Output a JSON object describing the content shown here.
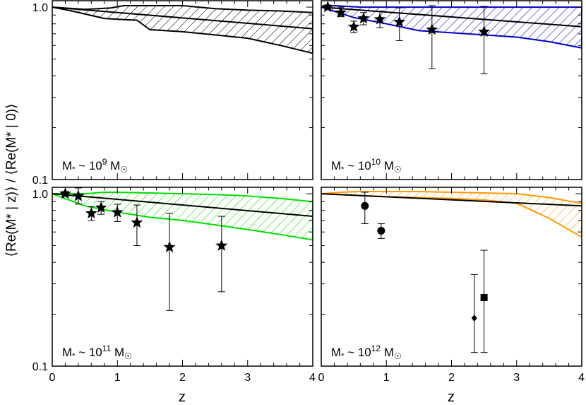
{
  "figure": {
    "ylabel": "⟨Re(M* | z)⟩ / ⟨Re(M* | 0)⟩",
    "xlabel": "z"
  },
  "chart_data": [
    {
      "type": "line",
      "panel": "top-left",
      "label": "M* ~ 10^9 M☉",
      "mass_exp": "9",
      "color": "#000000",
      "xlim": [
        0,
        4
      ],
      "ylim": [
        0.1,
        1.1
      ],
      "yscale": "log",
      "yticks": [
        "1.0",
        "0.1"
      ],
      "xticks": [],
      "model": {
        "x": [
          0,
          4
        ],
        "y": [
          1.0,
          0.75
        ]
      },
      "band_upper": {
        "x": [
          0,
          0.5,
          0.9,
          1.1,
          1.3,
          2,
          2.5,
          3,
          3.5,
          4
        ],
        "y": [
          1.0,
          0.97,
          0.99,
          1.02,
          1.02,
          1.02,
          0.98,
          0.96,
          0.95,
          0.93
        ]
      },
      "band_lower": {
        "x": [
          0,
          0.3,
          0.8,
          1.0,
          1.3,
          1.5,
          2,
          2.5,
          3,
          3.5,
          4
        ],
        "y": [
          1.0,
          0.95,
          0.86,
          0.85,
          0.84,
          0.74,
          0.72,
          0.69,
          0.66,
          0.6,
          0.54
        ]
      },
      "points": []
    },
    {
      "type": "line",
      "panel": "top-right",
      "label": "M* ~ 10^10 M☉",
      "mass_exp": "10",
      "color": "#0000cc",
      "xlim": [
        0,
        4
      ],
      "ylim": [
        0.1,
        1.1
      ],
      "yscale": "log",
      "yticks": [],
      "xticks": [],
      "model": {
        "x": [
          0,
          4
        ],
        "y": [
          1.0,
          0.77
        ]
      },
      "band_upper": {
        "x": [
          0,
          0.2,
          0.6,
          1,
          1.5,
          2,
          3,
          4
        ],
        "y": [
          1.0,
          1.02,
          1.0,
          1.0,
          1.0,
          1.0,
          1.0,
          1.0
        ]
      },
      "band_lower": {
        "x": [
          0,
          0.5,
          1,
          1.5,
          2,
          2.5,
          3,
          3.5,
          4
        ],
        "y": [
          1.0,
          0.87,
          0.8,
          0.73,
          0.71,
          0.69,
          0.67,
          0.63,
          0.58
        ]
      },
      "points": [
        {
          "x": 0.1,
          "y": 1.0,
          "lo": 0.97,
          "hi": 1.03,
          "marker": "star"
        },
        {
          "x": 0.3,
          "y": 0.93,
          "lo": 0.88,
          "hi": 1.0,
          "marker": "star"
        },
        {
          "x": 0.5,
          "y": 0.77,
          "lo": 0.71,
          "hi": 0.83,
          "marker": "star"
        },
        {
          "x": 0.65,
          "y": 0.86,
          "lo": 0.79,
          "hi": 0.93,
          "marker": "star"
        },
        {
          "x": 0.9,
          "y": 0.85,
          "lo": 0.76,
          "hi": 0.95,
          "marker": "star"
        },
        {
          "x": 1.2,
          "y": 0.82,
          "lo": 0.64,
          "hi": 0.99,
          "marker": "star"
        },
        {
          "x": 1.7,
          "y": 0.74,
          "lo": 0.44,
          "hi": 1.02,
          "marker": "star"
        },
        {
          "x": 2.5,
          "y": 0.72,
          "lo": 0.41,
          "hi": 1.01,
          "marker": "star"
        }
      ]
    },
    {
      "type": "line",
      "panel": "bottom-left",
      "label": "M* ~ 10^11 M☉",
      "mass_exp": "11",
      "color": "#00e000",
      "xlim": [
        0,
        4
      ],
      "ylim": [
        0.1,
        1.1
      ],
      "yscale": "log",
      "yticks": [
        "1.0",
        "0.1"
      ],
      "xticks": [
        "0",
        "1",
        "2",
        "3",
        "4"
      ],
      "model": {
        "x": [
          0,
          4
        ],
        "y": [
          1.0,
          0.74
        ]
      },
      "band_upper": {
        "x": [
          0,
          0.5,
          0.8,
          1,
          1.5,
          2,
          2.5,
          3,
          3.5,
          4
        ],
        "y": [
          1.0,
          1.0,
          1.02,
          1.02,
          1.01,
          1.0,
          0.99,
          0.97,
          0.94,
          0.9
        ]
      },
      "band_lower": {
        "x": [
          0,
          0.5,
          1,
          1.5,
          2,
          2.5,
          3,
          3.5,
          4
        ],
        "y": [
          1.0,
          0.85,
          0.78,
          0.73,
          0.7,
          0.66,
          0.62,
          0.58,
          0.54
        ]
      },
      "points": [
        {
          "x": 0.2,
          "y": 1.0,
          "lo": 0.97,
          "hi": 1.03,
          "marker": "star"
        },
        {
          "x": 0.4,
          "y": 0.97,
          "lo": 0.87,
          "hi": 1.08,
          "marker": "star"
        },
        {
          "x": 0.6,
          "y": 0.77,
          "lo": 0.7,
          "hi": 0.84,
          "marker": "star"
        },
        {
          "x": 0.75,
          "y": 0.83,
          "lo": 0.76,
          "hi": 0.9,
          "marker": "star"
        },
        {
          "x": 1.0,
          "y": 0.78,
          "lo": 0.69,
          "hi": 0.87,
          "marker": "star"
        },
        {
          "x": 1.3,
          "y": 0.68,
          "lo": 0.5,
          "hi": 0.86,
          "marker": "star"
        },
        {
          "x": 1.8,
          "y": 0.49,
          "lo": 0.21,
          "hi": 0.77,
          "marker": "star"
        },
        {
          "x": 2.6,
          "y": 0.5,
          "lo": 0.27,
          "hi": 0.74,
          "marker": "star"
        }
      ]
    },
    {
      "type": "line",
      "panel": "bottom-right",
      "label": "M* ~ 10^12 M☉",
      "mass_exp": "12",
      "color": "#ff9900",
      "xlim": [
        0,
        4
      ],
      "ylim": [
        0.1,
        1.1
      ],
      "yscale": "log",
      "yticks": [],
      "xticks": [
        "0",
        "1",
        "2",
        "3",
        "4"
      ],
      "model": {
        "x": [
          0,
          4
        ],
        "y": [
          1.0,
          0.85
        ]
      },
      "band_upper": {
        "x": [
          0,
          0.3,
          0.6,
          1,
          1.5,
          2,
          2.5,
          3,
          3.5,
          4
        ],
        "y": [
          1.0,
          1.02,
          1.03,
          1.03,
          1.03,
          1.02,
          1.01,
          1.0,
          0.95,
          0.88
        ]
      },
      "band_lower": {
        "x": [
          0,
          0.5,
          1,
          1.5,
          2,
          2.5,
          3,
          3.5,
          4
        ],
        "y": [
          1.0,
          0.98,
          0.96,
          0.95,
          0.94,
          0.92,
          0.88,
          0.72,
          0.56
        ]
      },
      "points": [
        {
          "x": 0.67,
          "y": 0.85,
          "lo": 0.67,
          "hi": 1.02,
          "marker": "circle"
        },
        {
          "x": 0.92,
          "y": 0.61,
          "lo": 0.55,
          "hi": 0.67,
          "marker": "circle"
        },
        {
          "x": 2.35,
          "y": 0.19,
          "lo": 0.12,
          "hi": 0.34,
          "marker": "diamond"
        },
        {
          "x": 2.5,
          "y": 0.25,
          "lo": 0.12,
          "hi": 0.47,
          "marker": "square"
        }
      ]
    }
  ]
}
